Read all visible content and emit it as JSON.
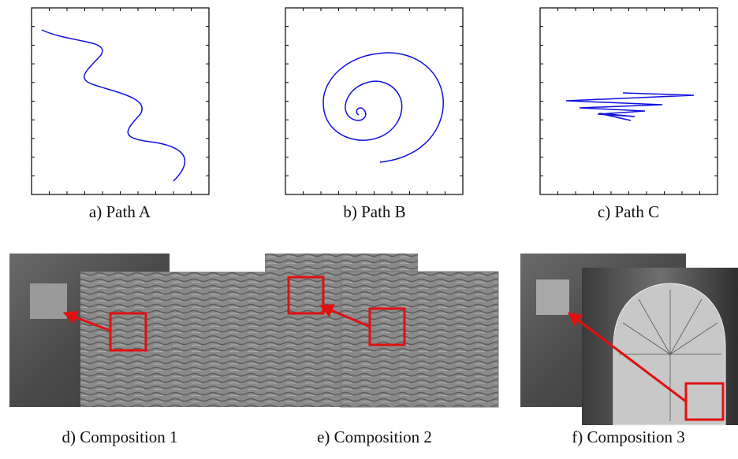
{
  "captions": [
    "a) Path A",
    "b) Path B",
    "c) Path C",
    "d) Composition 1",
    "e) Composition 2",
    "f) Composition 3"
  ]
}
